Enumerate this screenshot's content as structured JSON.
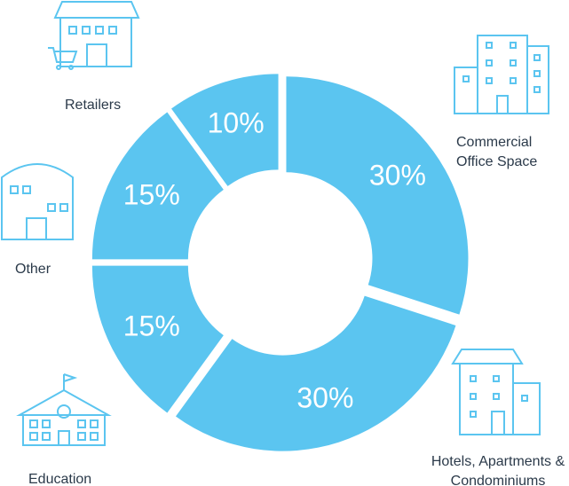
{
  "chart_data": {
    "type": "donut",
    "categories": [
      "Commercial Office Space",
      "Hotels, Apartments & Condominiums",
      "Education",
      "Other",
      "Retailers"
    ],
    "values": [
      30,
      30,
      15,
      15,
      10
    ],
    "value_labels": [
      "30%",
      "30%",
      "15%",
      "15%",
      "10%"
    ],
    "color": "#5bc5f0"
  }
}
